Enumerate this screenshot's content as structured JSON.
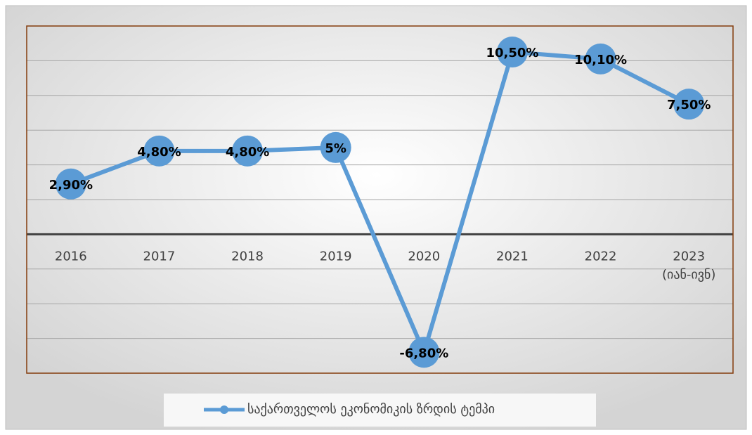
{
  "chart_data": {
    "type": "line",
    "categories": [
      "2016",
      "2017",
      "2018",
      "2019",
      "2020",
      "2021",
      "2022",
      "2023\n(იან-ივნ)"
    ],
    "series": [
      {
        "name": "საქართველოს ეკონომიკის ზრდის ტემპი",
        "color": "#5b9bd5",
        "values": [
          2.9,
          4.8,
          4.8,
          5,
          -6.8,
          10.5,
          10.1,
          7.5
        ],
        "value_labels": [
          "2,90%",
          "4,80%",
          "4,80%",
          "5%",
          "-6,80%",
          "10,50%",
          "10,10%",
          "7,50%"
        ]
      }
    ],
    "ylim": [
      -8,
      12
    ],
    "yticks": [
      -8,
      -6,
      -4,
      -2,
      0,
      2,
      4,
      6,
      8,
      10,
      12
    ],
    "grid": true,
    "legend": "bottom"
  }
}
